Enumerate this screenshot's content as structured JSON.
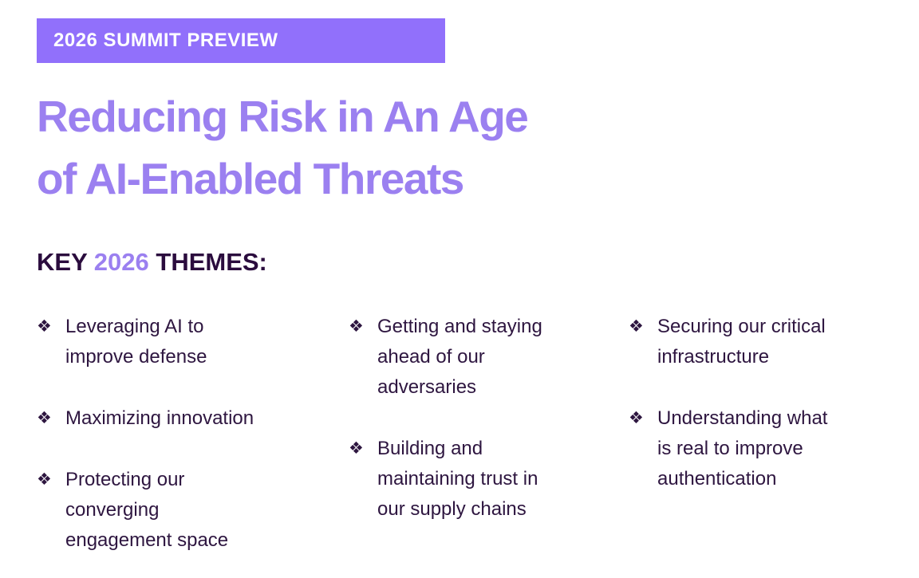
{
  "banner": {
    "label": "2026 SUMMIT PREVIEW"
  },
  "title": {
    "text": "Reducing Risk in An Age\nof AI-Enabled Threats"
  },
  "themes_heading": {
    "prefix": "KEY ",
    "year": "2026",
    "suffix": " THEMES:"
  },
  "bullets": {
    "glyph": "❖"
  },
  "columns": [
    {
      "items": [
        "Leveraging AI to\nimprove defense",
        "Maximizing innovation",
        "Protecting our\nconverging\nengagement space"
      ]
    },
    {
      "items": [
        "Getting and staying\nahead of our\nadversaries",
        "Building and\nmaintaining trust in\nour supply chains"
      ]
    },
    {
      "items": [
        "Securing our critical\ninfrastructure",
        "Understanding what\nis real to improve\nauthentication"
      ]
    }
  ],
  "colors": {
    "banner_bg": "#9170FB",
    "banner_text": "#FFFFFF",
    "title_purple": "#9B80F0",
    "accent_year": "#9B80F0",
    "heading_dark": "#2B0C3E",
    "body_text": "#2E1640",
    "background": "#FFFFFF"
  }
}
